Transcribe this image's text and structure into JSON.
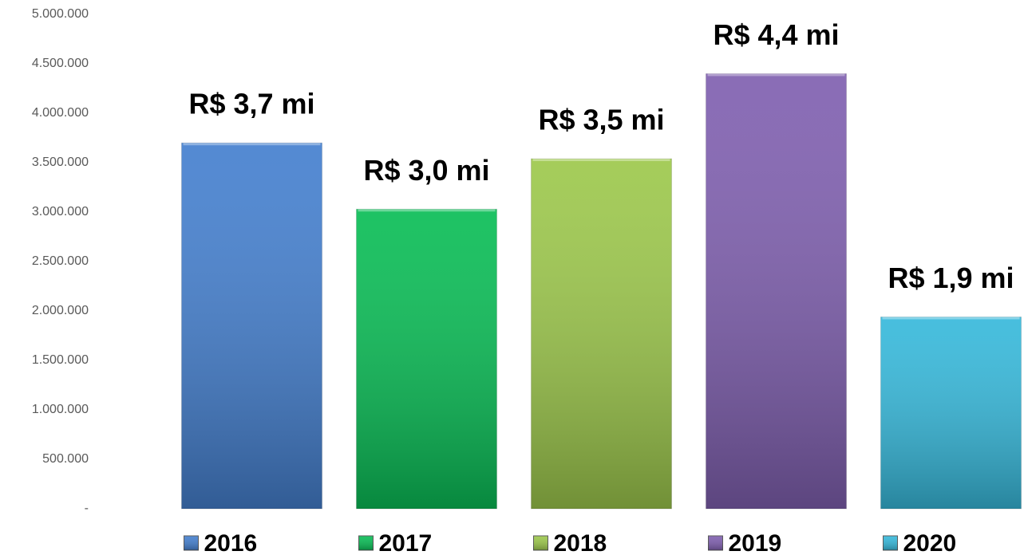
{
  "chart_data": {
    "type": "bar",
    "categories": [
      "2016",
      "2017",
      "2018",
      "2019",
      "2020"
    ],
    "values": [
      3700000,
      3030000,
      3540000,
      4400000,
      1940000
    ],
    "value_labels": [
      "R$ 3,7 mi",
      "R$ 3,0 mi",
      "R$ 3,5 mi",
      "R$ 4,4 mi",
      "R$ 1,9 mi"
    ],
    "colors": [
      "#4580cf",
      "#0abd56",
      "#9dc84c",
      "#8060b0",
      "#37b9db"
    ],
    "ylim": [
      0,
      5000000
    ],
    "yticks": [
      {
        "value": 0,
        "label": "-"
      },
      {
        "value": 500000,
        "label": "500.000"
      },
      {
        "value": 1000000,
        "label": "1.000.000"
      },
      {
        "value": 1500000,
        "label": "1.500.000"
      },
      {
        "value": 2000000,
        "label": "2.000.000"
      },
      {
        "value": 2500000,
        "label": "2.500.000"
      },
      {
        "value": 3000000,
        "label": "3.000.000"
      },
      {
        "value": 3500000,
        "label": "3.500.000"
      },
      {
        "value": 4000000,
        "label": "4.000.000"
      },
      {
        "value": 4500000,
        "label": "4.500.000"
      },
      {
        "value": 5000000,
        "label": "5.000.000"
      }
    ],
    "grid": false,
    "legend": "bottom"
  }
}
